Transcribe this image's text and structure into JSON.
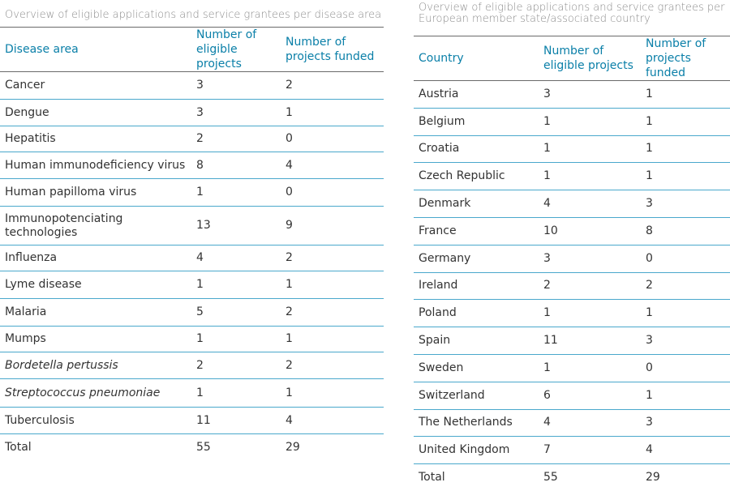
{
  "disease_table": {
    "caption": "Overview of eligible applications and service grantees per disease area",
    "headers": [
      "Disease area",
      "Number of eligible projects",
      "Number of projects funded"
    ],
    "rows": [
      {
        "name": "Cancer",
        "eligible": "3",
        "funded": "2",
        "italic": false
      },
      {
        "name": "Dengue",
        "eligible": "3",
        "funded": "1",
        "italic": false
      },
      {
        "name": "Hepatitis",
        "eligible": "2",
        "funded": "0",
        "italic": false
      },
      {
        "name": "Human immunodeficiency virus",
        "eligible": "8",
        "funded": "4",
        "italic": false
      },
      {
        "name": "Human papilloma virus",
        "eligible": "1",
        "funded": "0",
        "italic": false
      },
      {
        "name": "Immunopotenciating technologies",
        "eligible": "13",
        "funded": "9",
        "italic": false
      },
      {
        "name": "Influenza",
        "eligible": "4",
        "funded": "2",
        "italic": false
      },
      {
        "name": "Lyme disease",
        "eligible": "1",
        "funded": "1",
        "italic": false
      },
      {
        "name": "Malaria",
        "eligible": "5",
        "funded": "2",
        "italic": false
      },
      {
        "name": "Mumps",
        "eligible": "1",
        "funded": "1",
        "italic": false
      },
      {
        "name": "Bordetella pertussis",
        "eligible": "2",
        "funded": "2",
        "italic": true
      },
      {
        "name": "Streptococcus pneumoniae",
        "eligible": "1",
        "funded": "1",
        "italic": true
      },
      {
        "name": "Tuberculosis",
        "eligible": "11",
        "funded": "4",
        "italic": false
      }
    ],
    "total": {
      "name": "Total",
      "eligible": "55",
      "funded": "29"
    }
  },
  "country_table": {
    "caption": "Overview of eligible applications and service grantees per European member state/associated country",
    "headers": [
      "Country",
      "Number of eligible projects",
      "Number of projects funded"
    ],
    "rows": [
      {
        "name": "Austria",
        "eligible": "3",
        "funded": "1"
      },
      {
        "name": "Belgium",
        "eligible": "1",
        "funded": "1"
      },
      {
        "name": "Croatia",
        "eligible": "1",
        "funded": "1"
      },
      {
        "name": "Czech Republic",
        "eligible": "1",
        "funded": "1"
      },
      {
        "name": "Denmark",
        "eligible": "4",
        "funded": "3"
      },
      {
        "name": "France",
        "eligible": "10",
        "funded": "8"
      },
      {
        "name": "Germany",
        "eligible": "3",
        "funded": "0"
      },
      {
        "name": "Ireland",
        "eligible": "2",
        "funded": "2"
      },
      {
        "name": "Poland",
        "eligible": "1",
        "funded": "1"
      },
      {
        "name": "Spain",
        "eligible": "11",
        "funded": "3"
      },
      {
        "name": "Sweden",
        "eligible": "1",
        "funded": "0"
      },
      {
        "name": "Switzerland",
        "eligible": "6",
        "funded": "1"
      },
      {
        "name": "The Netherlands",
        "eligible": "4",
        "funded": "3"
      },
      {
        "name": "United Kingdom",
        "eligible": "7",
        "funded": "4"
      }
    ],
    "total": {
      "name": "Total",
      "eligible": "55",
      "funded": "29"
    }
  }
}
